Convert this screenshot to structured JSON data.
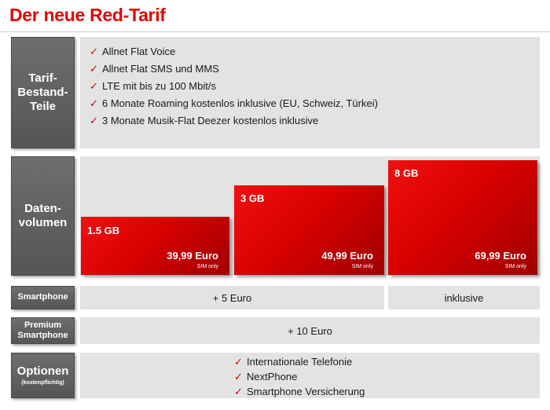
{
  "title": "Der neue Red-Tarif",
  "rows": {
    "tarif": {
      "label_lines": [
        "Tarif-",
        "Bestand-",
        "Teile"
      ]
    },
    "daten": {
      "label_lines": [
        "Daten-",
        "volumen"
      ]
    },
    "smartphone": {
      "label": "Smartphone"
    },
    "premium": {
      "label_lines": [
        "Premium",
        "Smartphone"
      ]
    },
    "optionen": {
      "label": "Optionen",
      "sublabel": "(kostenpflichtig)"
    }
  },
  "features": [
    "Allnet Flat Voice",
    "Allnet Flat SMS und MMS",
    "LTE mit bis zu 100 Mbit/s",
    "6 Monate Roaming kostenlos inklusive (EU, Schweiz, Türkei)",
    "3  Monate Musik-Flat  Deezer kostenlos inklusive"
  ],
  "check_icon": "✓",
  "tariffs": [
    {
      "volume": "1.5 GB",
      "price": "39,99 Euro",
      "note": "SIM only"
    },
    {
      "volume": "3 GB",
      "price": "49,99 Euro",
      "note": "SIM only"
    },
    {
      "volume": "8 GB",
      "price": "69,99 Euro",
      "note": "SIM only"
    }
  ],
  "smartphone_values": {
    "small_medium": "+ 5 Euro",
    "large": "inklusive"
  },
  "premium_value": "+ 10 Euro",
  "options": [
    "Internationale Telefonie",
    "NextPhone",
    "Smartphone Versicherung"
  ],
  "colors": {
    "brand_red": "#e60000",
    "label_gray": "#5f5f5f",
    "panel_gray": "#e3e3e3"
  }
}
